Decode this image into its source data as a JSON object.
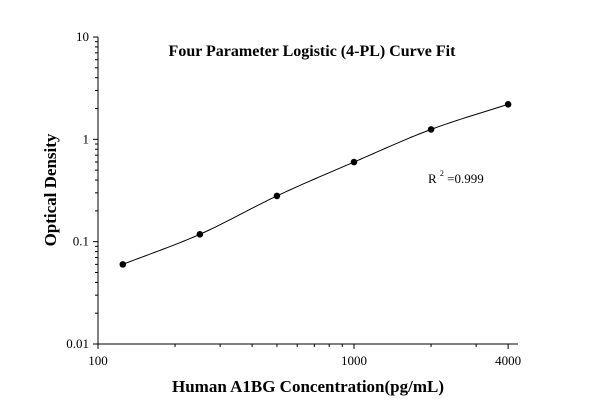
{
  "chart_data": {
    "type": "scatter",
    "title": "Four Parameter Logistic (4-PL) Curve Fit",
    "xlabel": "Human A1BG Concentration(pg/mL)",
    "ylabel": "Optical Density",
    "x_scale": "log",
    "y_scale": "log",
    "xlim": [
      100,
      4000
    ],
    "ylim": [
      0.01,
      10
    ],
    "x_ticks": [
      100,
      1000,
      4000
    ],
    "x_tick_labels": [
      "100",
      "1000",
      "4000"
    ],
    "y_ticks": [
      0.01,
      0.1,
      1,
      10
    ],
    "y_tick_labels": [
      "0.01",
      "0.1",
      "1",
      "10"
    ],
    "grid": false,
    "series": [
      {
        "x": [
          125,
          250,
          500,
          1000,
          2000,
          4000
        ],
        "y": [
          0.06,
          0.118,
          0.28,
          0.6,
          1.25,
          2.2
        ]
      }
    ],
    "fit_curve": {
      "type": "4PL",
      "from_x": 125,
      "to_x": 4000
    },
    "annotation": {
      "r_prefix": "R",
      "r_exponent": "2",
      "r_value": "=0.999"
    }
  }
}
